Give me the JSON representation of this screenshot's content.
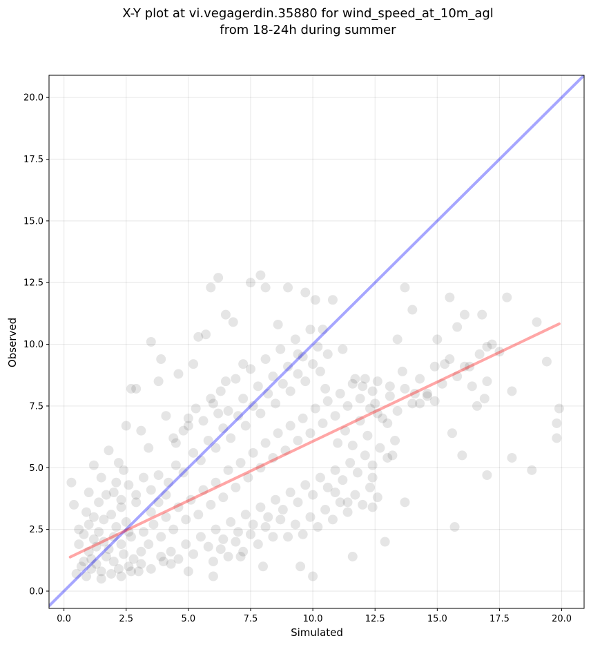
{
  "chart_data": {
    "type": "scatter",
    "title_line1": "X-Y plot at vi.vegagerdin.35880 for wind_speed_at_10m_agl",
    "title_line2": "from 18-24h during summer",
    "xlabel": "Simulated",
    "ylabel": "Observed",
    "xlim": [
      -0.6,
      20.9
    ],
    "ylim": [
      -0.7,
      20.9
    ],
    "xticks": [
      "0.0",
      "2.5",
      "5.0",
      "7.5",
      "10.0",
      "12.5",
      "15.0",
      "17.5",
      "20.0"
    ],
    "yticks": [
      "0.0",
      "2.5",
      "5.0",
      "7.5",
      "10.0",
      "12.5",
      "15.0",
      "17.5",
      "20.0"
    ],
    "grid": true,
    "point_color": "#000000",
    "point_alpha": 0.1,
    "series": [
      {
        "points": [
          [
            0.3,
            4.4
          ],
          [
            0.4,
            3.5
          ],
          [
            0.6,
            2.5
          ],
          [
            0.8,
            1.2
          ],
          [
            1.0,
            4.0
          ],
          [
            1.2,
            5.1
          ],
          [
            0.9,
            3.2
          ],
          [
            1.5,
            4.6
          ],
          [
            1.8,
            5.7
          ],
          [
            2.2,
            5.2
          ],
          [
            2.5,
            6.7
          ],
          [
            2.7,
            8.2
          ],
          [
            2.9,
            8.2
          ],
          [
            3.1,
            6.5
          ],
          [
            3.4,
            5.8
          ],
          [
            3.5,
            10.1
          ],
          [
            3.8,
            8.5
          ],
          [
            3.9,
            9.4
          ],
          [
            4.1,
            7.1
          ],
          [
            4.4,
            6.2
          ],
          [
            4.6,
            8.8
          ],
          [
            5.0,
            6.7
          ],
          [
            5.2,
            9.2
          ],
          [
            5.4,
            10.3
          ],
          [
            5.7,
            10.4
          ],
          [
            5.9,
            12.3
          ],
          [
            6.2,
            12.7
          ],
          [
            6.5,
            11.2
          ],
          [
            6.8,
            10.9
          ],
          [
            7.2,
            9.2
          ],
          [
            7.5,
            12.5
          ],
          [
            7.9,
            12.8
          ],
          [
            8.1,
            12.3
          ],
          [
            8.6,
            10.8
          ],
          [
            9.0,
            12.3
          ],
          [
            9.4,
            9.6
          ],
          [
            9.7,
            12.1
          ],
          [
            10.1,
            11.8
          ],
          [
            10.4,
            10.6
          ],
          [
            10.8,
            11.8
          ],
          [
            11.2,
            9.8
          ],
          [
            11.7,
            8.6
          ],
          [
            12.0,
            8.3
          ],
          [
            12.3,
            7.4
          ],
          [
            12.6,
            7.2
          ],
          [
            13.0,
            6.8
          ],
          [
            13.4,
            10.2
          ],
          [
            13.7,
            12.3
          ],
          [
            14.0,
            11.4
          ],
          [
            14.3,
            7.6
          ],
          [
            14.6,
            8.0
          ],
          [
            15.0,
            10.2
          ],
          [
            15.3,
            9.2
          ],
          [
            15.5,
            11.9
          ],
          [
            15.8,
            10.7
          ],
          [
            16.1,
            11.2
          ],
          [
            16.3,
            9.1
          ],
          [
            16.8,
            11.2
          ],
          [
            16.9,
            7.8
          ],
          [
            17.2,
            10.0
          ],
          [
            17.5,
            9.7
          ],
          [
            17.8,
            11.9
          ],
          [
            18.0,
            8.1
          ],
          [
            18.8,
            4.9
          ],
          [
            19.0,
            10.9
          ],
          [
            19.4,
            9.3
          ],
          [
            19.9,
            7.4
          ],
          [
            19.8,
            6.8
          ],
          [
            19.8,
            6.2
          ],
          [
            15.7,
            2.6
          ],
          [
            16.0,
            5.5
          ],
          [
            17.0,
            4.7
          ],
          [
            18.0,
            5.4
          ],
          [
            13.7,
            3.6
          ],
          [
            12.9,
            2.0
          ],
          [
            11.6,
            1.4
          ],
          [
            10.0,
            0.6
          ],
          [
            9.5,
            1.0
          ],
          [
            8.0,
            1.0
          ],
          [
            7.1,
            1.4
          ],
          [
            6.0,
            0.6
          ],
          [
            5.0,
            0.8
          ],
          [
            14.9,
            7.7
          ],
          [
            15.6,
            6.4
          ],
          [
            16.6,
            7.5
          ],
          [
            17.0,
            9.9
          ],
          [
            13.2,
            5.5
          ],
          [
            12.4,
            3.4
          ],
          [
            12.4,
            4.6
          ],
          [
            11.4,
            3.6
          ],
          [
            10.9,
            4.0
          ],
          [
            1.1,
            0.9
          ],
          [
            1.3,
            1.1
          ],
          [
            1.5,
            0.8
          ],
          [
            1.7,
            1.4
          ],
          [
            2.0,
            1.2
          ],
          [
            2.2,
            0.9
          ],
          [
            2.4,
            1.5
          ],
          [
            2.6,
            1.0
          ],
          [
            2.8,
            1.3
          ],
          [
            3.0,
            0.8
          ],
          [
            1.2,
            2.1
          ],
          [
            1.4,
            2.4
          ],
          [
            1.6,
            2.9
          ],
          [
            1.9,
            3.1
          ],
          [
            2.1,
            2.6
          ],
          [
            2.3,
            3.4
          ],
          [
            2.5,
            2.8
          ],
          [
            2.7,
            2.2
          ],
          [
            2.9,
            3.6
          ],
          [
            3.2,
            2.4
          ],
          [
            1.0,
            1.6
          ],
          [
            1.3,
            1.8
          ],
          [
            1.6,
            2.0
          ],
          [
            1.8,
            1.7
          ],
          [
            2.0,
            2.2
          ],
          [
            2.3,
            1.9
          ],
          [
            2.6,
            2.4
          ],
          [
            3.1,
            1.6
          ],
          [
            3.4,
            1.9
          ],
          [
            3.6,
            2.7
          ],
          [
            3.9,
            2.2
          ],
          [
            4.1,
            3.0
          ],
          [
            4.4,
            2.5
          ],
          [
            4.6,
            3.4
          ],
          [
            4.9,
            2.9
          ],
          [
            5.1,
            3.7
          ],
          [
            5.4,
            3.1
          ],
          [
            5.6,
            4.1
          ],
          [
            5.9,
            3.5
          ],
          [
            6.1,
            4.4
          ],
          [
            6.4,
            3.8
          ],
          [
            6.6,
            4.9
          ],
          [
            6.9,
            4.2
          ],
          [
            7.1,
            5.2
          ],
          [
            7.4,
            4.6
          ],
          [
            7.6,
            5.6
          ],
          [
            7.9,
            5.0
          ],
          [
            8.1,
            6.0
          ],
          [
            8.4,
            5.4
          ],
          [
            8.6,
            6.4
          ],
          [
            8.9,
            5.7
          ],
          [
            9.1,
            6.7
          ],
          [
            9.4,
            6.1
          ],
          [
            9.6,
            7.0
          ],
          [
            9.9,
            6.4
          ],
          [
            10.1,
            7.4
          ],
          [
            10.4,
            6.8
          ],
          [
            10.6,
            7.7
          ],
          [
            10.9,
            7.1
          ],
          [
            11.1,
            8.0
          ],
          [
            11.4,
            7.5
          ],
          [
            11.6,
            8.4
          ],
          [
            11.9,
            7.8
          ],
          [
            12.1,
            8.6
          ],
          [
            12.4,
            8.1
          ],
          [
            12.6,
            8.5
          ],
          [
            13.1,
            8.3
          ],
          [
            13.6,
            8.9
          ],
          [
            14.1,
            8.0
          ],
          [
            3.5,
            4.1
          ],
          [
            3.8,
            4.7
          ],
          [
            4.2,
            4.4
          ],
          [
            4.5,
            5.1
          ],
          [
            4.8,
            4.8
          ],
          [
            5.2,
            5.6
          ],
          [
            5.5,
            5.3
          ],
          [
            5.8,
            6.1
          ],
          [
            6.1,
            5.8
          ],
          [
            6.4,
            6.6
          ],
          [
            6.7,
            6.2
          ],
          [
            7.0,
            7.1
          ],
          [
            7.3,
            6.7
          ],
          [
            7.6,
            7.5
          ],
          [
            7.9,
            7.2
          ],
          [
            8.2,
            8.0
          ],
          [
            8.5,
            7.6
          ],
          [
            8.8,
            8.4
          ],
          [
            9.1,
            8.1
          ],
          [
            9.4,
            8.8
          ],
          [
            9.7,
            8.5
          ],
          [
            10.0,
            9.2
          ],
          [
            10.3,
            8.9
          ],
          [
            10.6,
            9.6
          ],
          [
            4.0,
            1.2
          ],
          [
            4.3,
            1.6
          ],
          [
            4.6,
            1.3
          ],
          [
            4.9,
            1.9
          ],
          [
            5.2,
            1.5
          ],
          [
            5.5,
            2.2
          ],
          [
            5.8,
            1.8
          ],
          [
            6.1,
            2.5
          ],
          [
            6.4,
            2.1
          ],
          [
            6.7,
            2.8
          ],
          [
            7.0,
            2.4
          ],
          [
            7.3,
            3.1
          ],
          [
            7.6,
            2.7
          ],
          [
            7.9,
            3.4
          ],
          [
            8.2,
            3.0
          ],
          [
            8.5,
            3.7
          ],
          [
            8.8,
            3.3
          ],
          [
            9.1,
            4.0
          ],
          [
            9.4,
            3.6
          ],
          [
            9.7,
            4.3
          ],
          [
            10.0,
            3.9
          ],
          [
            10.3,
            4.6
          ],
          [
            10.6,
            4.2
          ],
          [
            10.9,
            4.9
          ],
          [
            11.2,
            4.5
          ],
          [
            11.5,
            5.2
          ],
          [
            11.8,
            4.8
          ],
          [
            12.1,
            5.5
          ],
          [
            12.4,
            5.1
          ],
          [
            12.7,
            5.8
          ],
          [
            13.0,
            5.4
          ],
          [
            13.3,
            6.1
          ],
          [
            2.0,
            4.0
          ],
          [
            2.3,
            3.7
          ],
          [
            2.6,
            4.3
          ],
          [
            2.9,
            3.9
          ],
          [
            3.2,
            4.6
          ],
          [
            3.5,
            3.2
          ],
          [
            3.8,
            3.6
          ],
          [
            4.1,
            3.9
          ],
          [
            0.5,
            0.7
          ],
          [
            0.7,
            1.0
          ],
          [
            0.9,
            0.6
          ],
          [
            1.1,
            1.3
          ],
          [
            0.6,
            1.9
          ],
          [
            0.8,
            2.3
          ],
          [
            1.0,
            2.7
          ],
          [
            1.2,
            3.0
          ],
          [
            6.0,
            7.6
          ],
          [
            6.3,
            8.1
          ],
          [
            6.6,
            7.3
          ],
          [
            6.9,
            8.6
          ],
          [
            7.2,
            7.8
          ],
          [
            7.5,
            9.0
          ],
          [
            7.8,
            8.3
          ],
          [
            8.1,
            9.4
          ],
          [
            8.4,
            8.7
          ],
          [
            8.7,
            9.8
          ],
          [
            9.0,
            9.1
          ],
          [
            9.3,
            10.2
          ],
          [
            9.6,
            9.5
          ],
          [
            9.9,
            10.6
          ],
          [
            10.2,
            9.9
          ],
          [
            10.5,
            8.2
          ],
          [
            5.0,
            7.0
          ],
          [
            5.3,
            7.4
          ],
          [
            5.6,
            6.9
          ],
          [
            5.9,
            7.8
          ],
          [
            6.2,
            7.2
          ],
          [
            6.5,
            8.5
          ],
          [
            4.5,
            6.0
          ],
          [
            4.8,
            6.5
          ],
          [
            11.0,
            6.0
          ],
          [
            11.3,
            6.5
          ],
          [
            11.6,
            5.9
          ],
          [
            11.9,
            6.9
          ],
          [
            12.2,
            6.3
          ],
          [
            12.5,
            7.6
          ],
          [
            12.8,
            7.0
          ],
          [
            13.1,
            7.9
          ],
          [
            13.4,
            7.3
          ],
          [
            13.7,
            8.2
          ],
          [
            14.0,
            7.6
          ],
          [
            14.3,
            8.6
          ],
          [
            14.6,
            7.9
          ],
          [
            14.9,
            9.1
          ],
          [
            15.2,
            8.4
          ],
          [
            15.5,
            9.4
          ],
          [
            15.8,
            8.7
          ],
          [
            16.1,
            9.1
          ],
          [
            16.4,
            8.3
          ],
          [
            16.7,
            9.6
          ],
          [
            17.0,
            8.5
          ],
          [
            9.0,
            2.2
          ],
          [
            9.3,
            2.7
          ],
          [
            9.6,
            2.3
          ],
          [
            9.9,
            3.0
          ],
          [
            10.2,
            2.6
          ],
          [
            10.5,
            3.3
          ],
          [
            10.8,
            2.9
          ],
          [
            11.1,
            3.6
          ],
          [
            11.4,
            3.2
          ],
          [
            11.7,
            3.9
          ],
          [
            12.0,
            3.5
          ],
          [
            12.3,
            4.2
          ],
          [
            12.6,
            3.8
          ],
          [
            6.0,
            1.2
          ],
          [
            6.3,
            1.7
          ],
          [
            6.6,
            1.4
          ],
          [
            6.9,
            2.0
          ],
          [
            7.2,
            1.6
          ],
          [
            7.5,
            2.3
          ],
          [
            7.8,
            1.9
          ],
          [
            8.1,
            2.6
          ],
          [
            8.4,
            2.2
          ],
          [
            8.7,
            2.9
          ],
          [
            1.4,
            3.6
          ],
          [
            1.7,
            3.9
          ],
          [
            2.1,
            4.4
          ],
          [
            2.4,
            4.9
          ],
          [
            1.5,
            0.5
          ],
          [
            1.9,
            0.7
          ],
          [
            2.3,
            0.6
          ],
          [
            2.7,
            0.8
          ],
          [
            3.1,
            1.1
          ],
          [
            3.5,
            0.9
          ],
          [
            3.9,
            1.4
          ],
          [
            4.3,
            1.1
          ]
        ]
      }
    ],
    "lines": [
      {
        "name": "identity",
        "color": "#0000ff",
        "alpha": 0.35,
        "x": [
          -0.6,
          20.9
        ],
        "y": [
          -0.6,
          20.9
        ]
      },
      {
        "name": "fit",
        "color": "#ff0000",
        "alpha": 0.35,
        "x": [
          0.25,
          19.9
        ],
        "y": [
          1.38,
          10.83
        ]
      }
    ]
  }
}
